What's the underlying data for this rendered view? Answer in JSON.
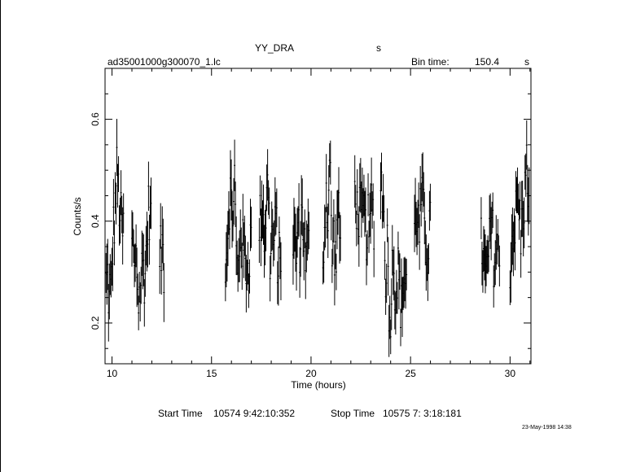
{
  "header": {
    "object": "YY_DRA",
    "object_unit": "s",
    "file": "ad35001000g300070_1.lc",
    "bin_label": "Bin time:",
    "bin_value": "150.4",
    "bin_unit": "s"
  },
  "footer": {
    "start_label": "Start Time",
    "start_value": "10574  9:42:10:352",
    "stop_label": "Stop Time",
    "stop_value": "10575  7: 3:18:181",
    "date": "23-May-1998 14:38"
  },
  "chart_data": {
    "type": "scatter",
    "title": "YY_DRA",
    "xlabel": "Time (hours)",
    "ylabel": "Counts/s",
    "xlim": [
      9.65,
      31.05
    ],
    "ylim": [
      0.12,
      0.7
    ],
    "xticks": [
      10,
      15,
      20,
      25,
      30
    ],
    "xtick_labels": [
      "10",
      "15",
      "20",
      "25",
      "30"
    ],
    "yticks": [
      0.2,
      0.4,
      0.6
    ],
    "ytick_labels": [
      "0.2",
      "0.4",
      "0.6"
    ],
    "grid": false,
    "legend": "none",
    "error_bars": true,
    "segments": [
      {
        "start": 9.7,
        "end": 10.6
      },
      {
        "start": 11.0,
        "end": 12.0
      },
      {
        "start": 12.4,
        "end": 12.65
      },
      {
        "start": 15.7,
        "end": 17.0
      },
      {
        "start": 17.4,
        "end": 18.5
      },
      {
        "start": 19.1,
        "end": 19.9
      },
      {
        "start": 20.6,
        "end": 21.5
      },
      {
        "start": 22.2,
        "end": 23.2
      },
      {
        "start": 23.5,
        "end": 24.8
      },
      {
        "start": 25.2,
        "end": 26.0
      },
      {
        "start": 28.55,
        "end": 29.5
      },
      {
        "start": 30.0,
        "end": 31.0
      }
    ],
    "points": [
      [
        9.75,
        0.28
      ],
      [
        9.8,
        0.3
      ],
      [
        9.85,
        0.22
      ],
      [
        9.9,
        0.27
      ],
      [
        9.95,
        0.25
      ],
      [
        10.05,
        0.37
      ],
      [
        10.15,
        0.42
      ],
      [
        10.25,
        0.5
      ],
      [
        10.35,
        0.44
      ],
      [
        10.5,
        0.38
      ],
      [
        11.05,
        0.36
      ],
      [
        11.1,
        0.33
      ],
      [
        11.15,
        0.25
      ],
      [
        11.2,
        0.38
      ],
      [
        11.25,
        0.3
      ],
      [
        11.35,
        0.24
      ],
      [
        11.45,
        0.28
      ],
      [
        11.55,
        0.32
      ],
      [
        11.65,
        0.29
      ],
      [
        11.75,
        0.36
      ],
      [
        11.85,
        0.43
      ],
      [
        11.95,
        0.4
      ],
      [
        12.45,
        0.33
      ],
      [
        12.55,
        0.36
      ],
      [
        12.62,
        0.3
      ],
      [
        15.75,
        0.33
      ],
      [
        15.85,
        0.42
      ],
      [
        15.95,
        0.46
      ],
      [
        16.05,
        0.38
      ],
      [
        16.15,
        0.51
      ],
      [
        16.25,
        0.32
      ],
      [
        16.35,
        0.28
      ],
      [
        16.45,
        0.4
      ],
      [
        16.55,
        0.35
      ],
      [
        16.7,
        0.33
      ],
      [
        16.85,
        0.3
      ],
      [
        16.95,
        0.36
      ],
      [
        17.45,
        0.4
      ],
      [
        17.55,
        0.45
      ],
      [
        17.65,
        0.37
      ],
      [
        17.75,
        0.42
      ],
      [
        17.85,
        0.49
      ],
      [
        17.95,
        0.32
      ],
      [
        18.05,
        0.38
      ],
      [
        18.15,
        0.35
      ],
      [
        18.25,
        0.41
      ],
      [
        18.35,
        0.3
      ],
      [
        18.45,
        0.34
      ],
      [
        19.15,
        0.36
      ],
      [
        19.25,
        0.33
      ],
      [
        19.35,
        0.39
      ],
      [
        19.45,
        0.35
      ],
      [
        19.55,
        0.43
      ],
      [
        19.65,
        0.37
      ],
      [
        19.75,
        0.31
      ],
      [
        19.85,
        0.35
      ],
      [
        20.65,
        0.35
      ],
      [
        20.75,
        0.47
      ],
      [
        20.85,
        0.41
      ],
      [
        20.95,
        0.53
      ],
      [
        21.05,
        0.33
      ],
      [
        21.15,
        0.37
      ],
      [
        21.25,
        0.31
      ],
      [
        21.35,
        0.43
      ],
      [
        21.45,
        0.36
      ],
      [
        22.25,
        0.46
      ],
      [
        22.35,
        0.4
      ],
      [
        22.45,
        0.43
      ],
      [
        22.55,
        0.39
      ],
      [
        22.65,
        0.42
      ],
      [
        22.75,
        0.37
      ],
      [
        22.85,
        0.4
      ],
      [
        22.95,
        0.36
      ],
      [
        23.05,
        0.45
      ],
      [
        23.15,
        0.4
      ],
      [
        23.55,
        0.48
      ],
      [
        23.65,
        0.42
      ],
      [
        23.75,
        0.3
      ],
      [
        23.85,
        0.36
      ],
      [
        23.95,
        0.18
      ],
      [
        24.05,
        0.28
      ],
      [
        24.15,
        0.35
      ],
      [
        24.25,
        0.24
      ],
      [
        24.35,
        0.31
      ],
      [
        24.45,
        0.27
      ],
      [
        24.55,
        0.22
      ],
      [
        24.65,
        0.3
      ],
      [
        24.75,
        0.28
      ],
      [
        25.25,
        0.4
      ],
      [
        25.35,
        0.43
      ],
      [
        25.45,
        0.37
      ],
      [
        25.55,
        0.46
      ],
      [
        25.65,
        0.41
      ],
      [
        25.75,
        0.38
      ],
      [
        25.85,
        0.33
      ],
      [
        25.95,
        0.39
      ],
      [
        28.6,
        0.35
      ],
      [
        28.7,
        0.31
      ],
      [
        28.8,
        0.28
      ],
      [
        28.9,
        0.33
      ],
      [
        29.0,
        0.36
      ],
      [
        29.1,
        0.4
      ],
      [
        29.2,
        0.31
      ],
      [
        29.3,
        0.35
      ],
      [
        29.4,
        0.33
      ],
      [
        30.05,
        0.32
      ],
      [
        30.15,
        0.4
      ],
      [
        30.25,
        0.38
      ],
      [
        30.35,
        0.45
      ],
      [
        30.45,
        0.43
      ],
      [
        30.55,
        0.37
      ],
      [
        30.65,
        0.42
      ],
      [
        30.75,
        0.46
      ],
      [
        30.85,
        0.51
      ],
      [
        30.95,
        0.43
      ]
    ]
  }
}
